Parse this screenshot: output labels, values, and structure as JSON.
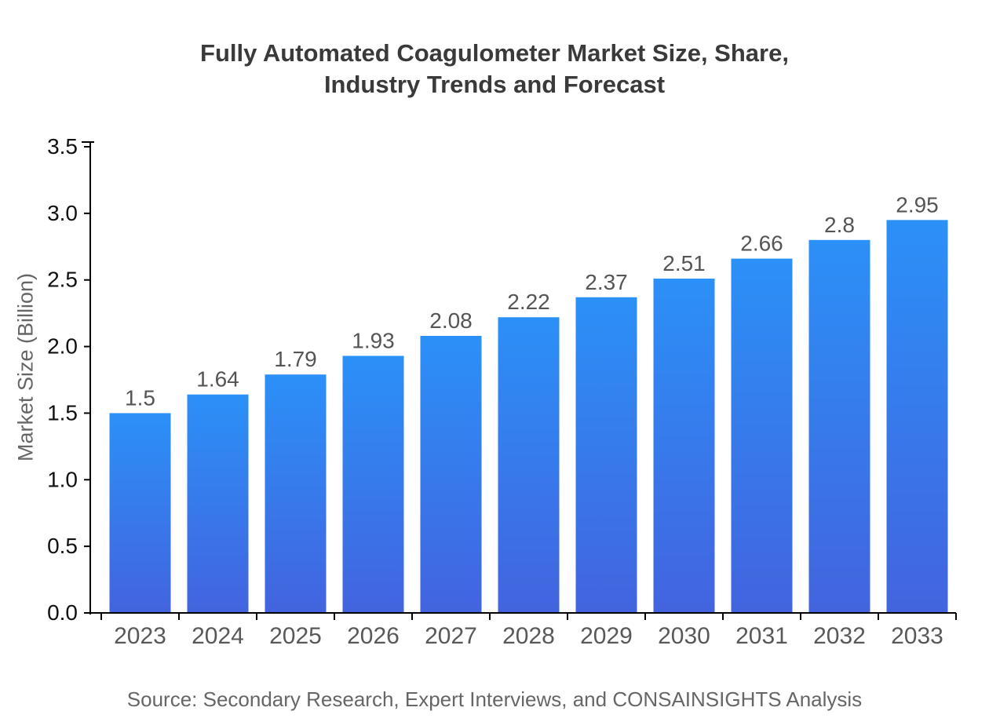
{
  "header": {
    "title_lines": [
      "Fully Automated Coagulometer Market Size, Share,",
      "Industry Trends and Forecast"
    ]
  },
  "footer": {
    "source_text": "Source: Secondary Research, Expert Interviews, and CONSAINSIGHTS Analysis"
  },
  "chart_data": {
    "type": "bar",
    "title": "Fully Automated Coagulometer Market Size, Share, Industry Trends and Forecast",
    "categories": [
      "2023",
      "2024",
      "2025",
      "2026",
      "2027",
      "2028",
      "2029",
      "2030",
      "2031",
      "2032",
      "2033"
    ],
    "values": [
      1.5,
      1.64,
      1.79,
      1.93,
      2.08,
      2.22,
      2.37,
      2.51,
      2.66,
      2.8,
      2.95
    ],
    "value_labels": [
      "1.5",
      "1.64",
      "1.79",
      "1.93",
      "2.08",
      "2.22",
      "2.37",
      "2.51",
      "2.66",
      "2.8",
      "2.95"
    ],
    "xlabel": "",
    "ylabel": "Market Size (Billion)",
    "ylim": [
      0,
      3.5
    ],
    "ytick_step": 0.5,
    "ytick_labels": [
      "0.0",
      "0.5",
      "1.0",
      "1.5",
      "2.0",
      "2.5",
      "3.0",
      "3.5"
    ],
    "grid": false,
    "legend": "none",
    "colors": {
      "bar_gradient_top": "#2B90F7",
      "bar_gradient_bottom": "#4364DE",
      "axis": "#000000",
      "title": "#3A3A3A",
      "x_tick_label": "#595959",
      "y_tick_label": "#111111",
      "value_label": "#555555",
      "ylabel_color": "#666666",
      "source_text": "#666666",
      "background": "#FFFFFF"
    }
  }
}
